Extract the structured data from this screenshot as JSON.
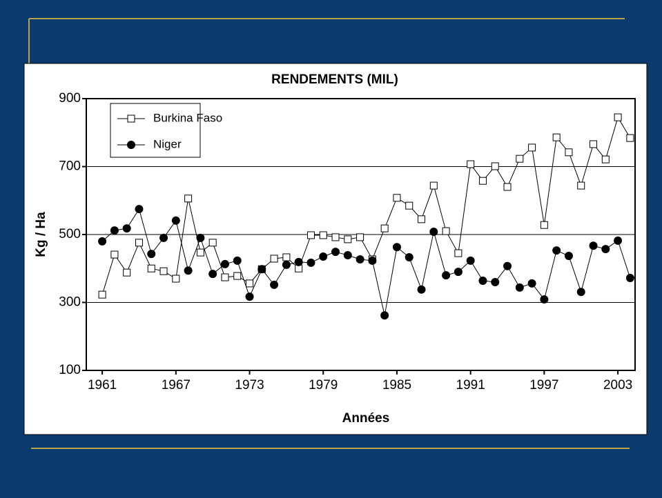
{
  "chart_data": {
    "type": "line",
    "title": "RENDEMENTS (MIL)",
    "x_label": "Années",
    "y_label": "Kg / Ha",
    "x": [
      1961,
      1962,
      1963,
      1964,
      1965,
      1966,
      1967,
      1968,
      1969,
      1970,
      1971,
      1972,
      1973,
      1974,
      1975,
      1976,
      1977,
      1978,
      1979,
      1980,
      1981,
      1982,
      1983,
      1984,
      1985,
      1986,
      1987,
      1988,
      1989,
      1990,
      1991,
      1992,
      1993,
      1994,
      1995,
      1996,
      1997,
      1998,
      1999,
      2000,
      2001,
      2002,
      2003,
      2004
    ],
    "series": [
      {
        "name": "Burkina Faso",
        "color": "#ffffff",
        "marker": "square",
        "values": [
          323,
          441,
          388,
          476,
          400,
          392,
          370,
          606,
          447,
          476,
          374,
          378,
          356,
          398,
          429,
          433,
          400,
          498,
          498,
          492,
          486,
          492,
          427,
          518,
          608,
          585,
          545,
          644,
          510,
          445,
          707,
          658,
          701,
          640,
          723,
          756,
          528,
          786,
          742,
          644,
          766,
          721,
          845,
          784
        ]
      },
      {
        "name": "Niger",
        "color": "#000000",
        "marker": "circle",
        "values": [
          480,
          512,
          518,
          575,
          443,
          490,
          541,
          394,
          490,
          384,
          413,
          423,
          317,
          398,
          352,
          411,
          419,
          417,
          435,
          449,
          439,
          427,
          423,
          262,
          463,
          433,
          338,
          508,
          380,
          390,
          423,
          364,
          360,
          407,
          344,
          356,
          309,
          453,
          437,
          331,
          467,
          457,
          482,
          372
        ]
      }
    ],
    "xlim": [
      1959.7,
      2004.4
    ],
    "xticks": [
      1961,
      1967,
      1973,
      1979,
      1985,
      1991,
      1997,
      2003
    ],
    "ylim": [
      100,
      900
    ],
    "yticks": [
      100,
      300,
      500,
      700,
      900
    ],
    "grid": true,
    "legend": "upper-left"
  }
}
